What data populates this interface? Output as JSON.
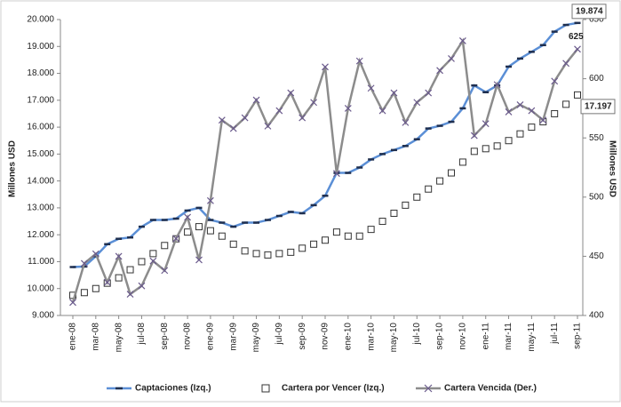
{
  "chart_data": {
    "type": "line",
    "categories": [
      "ene-08",
      null,
      "mar-08",
      null,
      "may-08",
      null,
      "jul-08",
      null,
      "sep-08",
      null,
      "nov-08",
      null,
      "ene-09",
      null,
      "mar-09",
      null,
      "may-09",
      null,
      "jul-09",
      null,
      "sep-09",
      null,
      "nov-09",
      null,
      "ene-10",
      null,
      "mar-10",
      null,
      "may-10",
      null,
      "jul-10",
      null,
      "sep-10",
      null,
      "nov-10",
      null,
      "ene-11",
      null,
      "mar-11",
      null,
      "may-11",
      null,
      "jul-11",
      null,
      "sep-11"
    ],
    "ylabel": "Millones USD",
    "y2label": "Millones USD",
    "ylim": [
      9000,
      20000
    ],
    "yticks": [
      {
        "value": 9000,
        "label": "9.000"
      },
      {
        "value": 10000,
        "label": "10.000"
      },
      {
        "value": 11000,
        "label": "11.000"
      },
      {
        "value": 12000,
        "label": "12.000"
      },
      {
        "value": 13000,
        "label": "13.000"
      },
      {
        "value": 14000,
        "label": "14.000"
      },
      {
        "value": 15000,
        "label": "15.000"
      },
      {
        "value": 16000,
        "label": "16.000"
      },
      {
        "value": 17000,
        "label": "17.000"
      },
      {
        "value": 18000,
        "label": "18.000"
      },
      {
        "value": 19000,
        "label": "19.000"
      },
      {
        "value": 20000,
        "label": "20.000"
      }
    ],
    "y2lim": [
      400,
      650
    ],
    "y2ticks": [
      400,
      450,
      500,
      550,
      600,
      650
    ],
    "grid": false,
    "legend": "bottom",
    "series": [
      {
        "name": "Captaciones (Izq.)",
        "color": "#5b8fd6",
        "marker": "dash",
        "values": [
          10800,
          10820,
          11200,
          11650,
          11850,
          11900,
          12300,
          12550,
          12550,
          12600,
          12900,
          13000,
          12550,
          12450,
          12300,
          12450,
          12450,
          12550,
          12700,
          12850,
          12800,
          13100,
          13450,
          14300,
          14300,
          14500,
          14800,
          15000,
          15150,
          15300,
          15550,
          15950,
          16050,
          16200,
          16700,
          17550,
          17300,
          17550,
          18250,
          18550,
          18800,
          19050,
          19550,
          19800,
          19874
        ]
      },
      {
        "name": "Cartera por Vencer (Izq.)",
        "color": "#333333",
        "marker": "square",
        "line": false,
        "values": [
          9750,
          9850,
          10000,
          10200,
          10400,
          10700,
          11000,
          11300,
          11600,
          11850,
          12100,
          12300,
          12150,
          11950,
          11650,
          11400,
          11300,
          11250,
          11300,
          11350,
          11500,
          11650,
          11800,
          12100,
          11950,
          11950,
          12200,
          12500,
          12800,
          13100,
          13400,
          13700,
          14000,
          14300,
          14700,
          15100,
          15200,
          15300,
          15500,
          15750,
          16000,
          16200,
          16500,
          16850,
          17197
        ]
      },
      {
        "name": "Cartera Vencida (Der.)",
        "color": "#8c8c8c",
        "marker": "x",
        "axis": "y2",
        "values": [
          411,
          444,
          452,
          428,
          450,
          418,
          425,
          446,
          438,
          465,
          483,
          447,
          497,
          565,
          558,
          567,
          582,
          560,
          573,
          588,
          567,
          580,
          610,
          520,
          575,
          615,
          592,
          573,
          588,
          563,
          580,
          588,
          607,
          617,
          632,
          552,
          562,
          595,
          572,
          578,
          573,
          565,
          598,
          613,
          625
        ]
      }
    ],
    "annotations": [
      {
        "text": "19.874",
        "series": 0,
        "boxed": true
      },
      {
        "text": "625",
        "series": 2,
        "boxed": false
      },
      {
        "text": "17.197",
        "series": 1,
        "boxed": true
      }
    ]
  }
}
